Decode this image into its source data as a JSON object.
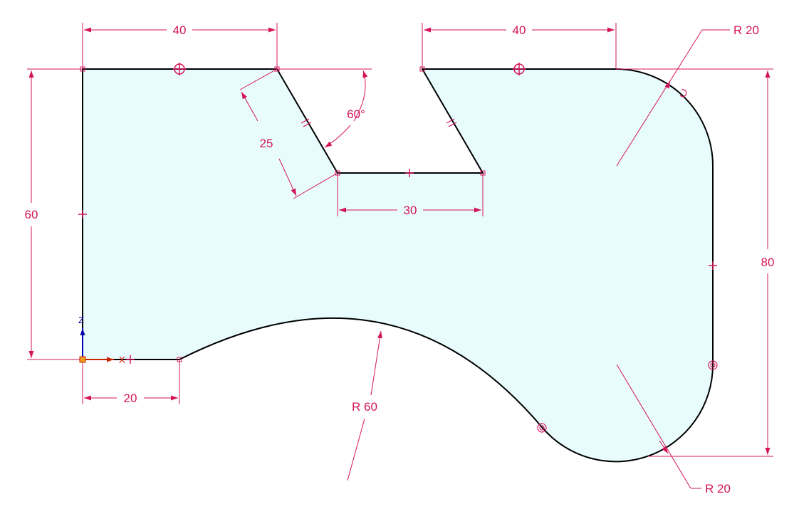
{
  "drawing": {
    "colors": {
      "outline": "#000000",
      "fill": "#e8fcfd",
      "dimension": "#d4145a",
      "x_axis": "#cc2200",
      "z_axis": "#0000aa",
      "background": "#ffffff"
    },
    "dimensions": {
      "top_left_width": "40",
      "top_right_width": "40",
      "slot_bottom_width": "30",
      "slot_edge_length": "25",
      "slot_angle": "60°",
      "left_height": "60",
      "right_height": "80",
      "bottom_left_width": "20",
      "radius_top_right": "R 20",
      "radius_bottom_right": "R 20",
      "radius_bottom_arc": "R 60"
    },
    "axes": {
      "x_label": "X",
      "z_label": "Z"
    }
  }
}
